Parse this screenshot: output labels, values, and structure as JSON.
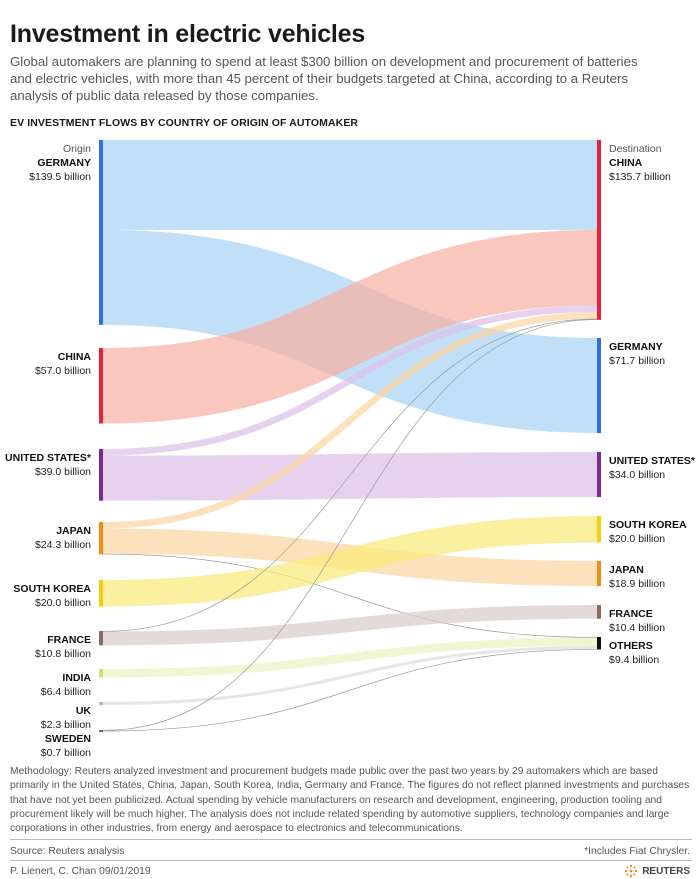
{
  "title": "Investment in electric vehicles",
  "subtitle": "Global automakers are planning to spend at least $300 billion on development and procurement of batteries and electric vehicles, with more than 45 percent of their budgets targeted at China, according to a Reuters analysis of public data released by those companies.",
  "section_title": "EV INVESTMENT FLOWS BY COUNTRY OF ORIGIN OF AUTOMAKER",
  "methodology": "Methodology: Reuters analyzed investment and procurement budgets made public over the past two years by 29 automakers which are based primarily in the United States, China, Japan, South Korea, India, Germany and France. The figures do not reflect planned investments and purchases that have not yet been publicized. Actual spending by vehicle manufacturers on research and development, engineering, production tooling and procurement likely will be much higher. The analysis does not include related spending by automotive suppliers, technology companies and large corporations in other industries, from energy and aerospace to electronics and telecommunications.",
  "source": "Source: Reuters analysis",
  "footnote": "*Includes Fiat Chrysler.",
  "byline": "P. Lienert, C. Chan 09/01/2019",
  "brand": "REUTERS",
  "chart_data": {
    "type": "sankey",
    "title": "EV INVESTMENT FLOWS BY COUNTRY OF ORIGIN OF AUTOMAKER",
    "left_header": "Origin",
    "right_header": "Destination",
    "unit": "$ billion",
    "sources": [
      {
        "id": "GER",
        "name": "GERMANY",
        "value_label": "$139.5 billion",
        "value": 139.5,
        "color": "#2f6fe4"
      },
      {
        "id": "CHN",
        "name": "CHINA",
        "value_label": "$57.0 billion",
        "value": 57.0,
        "color": "#e8213f"
      },
      {
        "id": "USA",
        "name": "UNITED STATES*",
        "value_label": "$39.0 billion",
        "value": 39.0,
        "color": "#7a2a96"
      },
      {
        "id": "JPN",
        "name": "JAPAN",
        "value_label": "$24.3 billion",
        "value": 24.3,
        "color": "#f28c12"
      },
      {
        "id": "KOR",
        "name": "SOUTH KOREA",
        "value_label": "$20.0 billion",
        "value": 20.0,
        "color": "#f5cf0f"
      },
      {
        "id": "FRA",
        "name": "FRANCE",
        "value_label": "$10.8 billion",
        "value": 10.8,
        "color": "#8a6b5e"
      },
      {
        "id": "IND",
        "name": "INDIA",
        "value_label": "$6.4 billion",
        "value": 6.4,
        "color": "#cfe07a"
      },
      {
        "id": "UK",
        "name": "UK",
        "value_label": "$2.3 billion",
        "value": 2.3,
        "color": "#b8b8b8"
      },
      {
        "id": "SWE",
        "name": "SWEDEN",
        "value_label": "$0.7 billion",
        "value": 0.7,
        "color": "#666666"
      }
    ],
    "destinations": [
      {
        "id": "CHN",
        "name": "CHINA",
        "value_label": "$135.7 billion",
        "value": 135.7,
        "color": "#e8213f"
      },
      {
        "id": "GER",
        "name": "GERMANY",
        "value_label": "$71.7 billion",
        "value": 71.7,
        "color": "#2f6fe4"
      },
      {
        "id": "USA",
        "name": "UNITED STATES*",
        "value_label": "$34.0 billion",
        "value": 34.0,
        "color": "#7a2a96"
      },
      {
        "id": "KOR",
        "name": "SOUTH KOREA",
        "value_label": "$20.0 billion",
        "value": 20.0,
        "color": "#f5cf0f"
      },
      {
        "id": "JPN",
        "name": "JAPAN",
        "value_label": "$18.9 billion",
        "value": 18.9,
        "color": "#f28c12"
      },
      {
        "id": "FRA",
        "name": "FRANCE",
        "value_label": "$10.4 billion",
        "value": 10.4,
        "color": "#8a6b5e"
      },
      {
        "id": "OTH",
        "name": "OTHERS",
        "value_label": "$9.4 billion",
        "value": 9.4,
        "color": "#111111"
      }
    ],
    "flows": [
      {
        "from": "GER",
        "to": "CHN",
        "value": 67.8,
        "color": "#a9d2f3"
      },
      {
        "from": "GER",
        "to": "GER",
        "value": 71.7,
        "color": "#a9d2f3"
      },
      {
        "from": "CHN",
        "to": "CHN",
        "value": 57.0,
        "color": "#f6b1a3"
      },
      {
        "from": "USA",
        "to": "CHN",
        "value": 5.0,
        "color": "#dcc1e9"
      },
      {
        "from": "USA",
        "to": "USA",
        "value": 34.0,
        "color": "#dcc1e9"
      },
      {
        "from": "JPN",
        "to": "CHN",
        "value": 5.0,
        "color": "#fbd5a3"
      },
      {
        "from": "JPN",
        "to": "JPN",
        "value": 18.9,
        "color": "#fbd5a3"
      },
      {
        "from": "JPN",
        "to": "OTH",
        "value": 0.4,
        "color": "#fbd5a3"
      },
      {
        "from": "KOR",
        "to": "KOR",
        "value": 20.0,
        "color": "#f9ea7a"
      },
      {
        "from": "FRA",
        "to": "CHN",
        "value": 0.4,
        "color": "#d9cdc9"
      },
      {
        "from": "FRA",
        "to": "FRA",
        "value": 10.4,
        "color": "#d9cdc9"
      },
      {
        "from": "IND",
        "to": "OTH",
        "value": 6.4,
        "color": "#eaf2c0"
      },
      {
        "from": "UK",
        "to": "OTH",
        "value": 2.3,
        "color": "#dcdcdc"
      },
      {
        "from": "SWE",
        "to": "CHN",
        "value": 0.5,
        "color": "#cfcfcf"
      },
      {
        "from": "SWE",
        "to": "OTH",
        "value": 0.2,
        "color": "#cfcfcf"
      }
    ]
  }
}
